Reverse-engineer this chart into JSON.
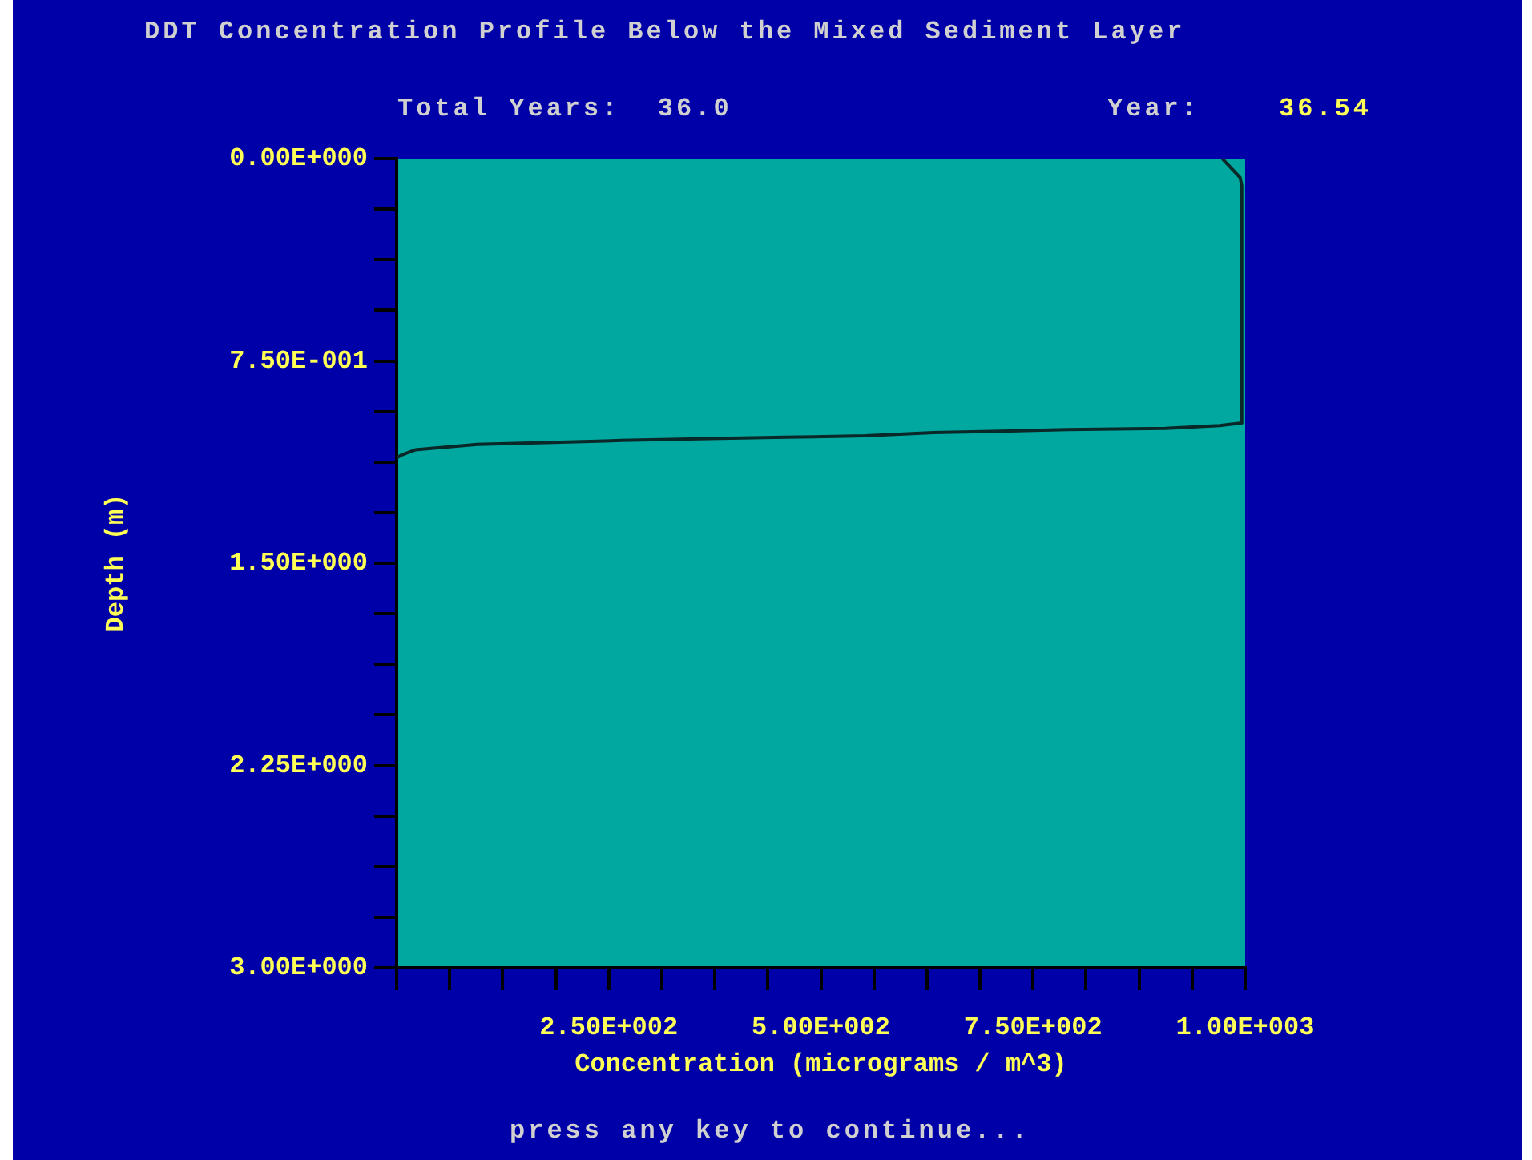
{
  "chart_data": {
    "type": "line",
    "title": "DDT Concentration Profile Below the Mixed Sediment Layer",
    "xlabel": "Concentration (micrograms / m^3)",
    "ylabel": "Depth (m)",
    "annotations": [
      "Total Years:  36.0",
      "Year:",
      "36.54",
      "press any key to continue..."
    ],
    "x": [
      973,
      994,
      996,
      996,
      970,
      906,
      790,
      633,
      552,
      458,
      356,
      265,
      176,
      95,
      46,
      22,
      5,
      0
    ],
    "series": [
      {
        "color": "#0a2828",
        "values": [
          0,
          0.07,
          0.1,
          0.98,
          0.99,
          1.0,
          1.005,
          1.016,
          1.028,
          1.033,
          1.039,
          1.045,
          1.053,
          1.06,
          1.073,
          1.08,
          1.1,
          1.11
        ]
      }
    ],
    "xlim": [
      0,
      1000
    ],
    "xticks": [
      {
        "value": 0,
        "label": null
      },
      {
        "value": 62.5,
        "label": null
      },
      {
        "value": 125,
        "label": null
      },
      {
        "value": 187.5,
        "label": null
      },
      {
        "value": 250,
        "label": "2.50E+002"
      },
      {
        "value": 312.5,
        "label": null
      },
      {
        "value": 375,
        "label": null
      },
      {
        "value": 437.5,
        "label": null
      },
      {
        "value": 500,
        "label": "5.00E+002"
      },
      {
        "value": 562.5,
        "label": null
      },
      {
        "value": 625,
        "label": null
      },
      {
        "value": 687.5,
        "label": null
      },
      {
        "value": 750,
        "label": "7.50E+002"
      },
      {
        "value": 812.5,
        "label": null
      },
      {
        "value": 875,
        "label": null
      },
      {
        "value": 937.5,
        "label": null
      },
      {
        "value": 1000,
        "label": "1.00E+003"
      }
    ],
    "ylim": [
      3,
      0
    ],
    "yticks": [
      {
        "value": 0,
        "label": "0.00E+000"
      },
      {
        "value": 0.1875,
        "label": null
      },
      {
        "value": 0.375,
        "label": null
      },
      {
        "value": 0.5625,
        "label": null
      },
      {
        "value": 0.75,
        "label": "7.50E-001"
      },
      {
        "value": 0.9375,
        "label": null
      },
      {
        "value": 1.125,
        "label": null
      },
      {
        "value": 1.3125,
        "label": null
      },
      {
        "value": 1.5,
        "label": "1.50E+000"
      },
      {
        "value": 1.6875,
        "label": null
      },
      {
        "value": 1.875,
        "label": null
      },
      {
        "value": 2.0625,
        "label": null
      },
      {
        "value": 2.25,
        "label": "2.25E+000"
      },
      {
        "value": 2.4375,
        "label": null
      },
      {
        "value": 2.625,
        "label": null
      },
      {
        "value": 2.8125,
        "label": null
      },
      {
        "value": 3,
        "label": "3.00E+000"
      }
    ],
    "grid": false,
    "legend": false,
    "marker": "none",
    "line_style": "solid"
  }
}
